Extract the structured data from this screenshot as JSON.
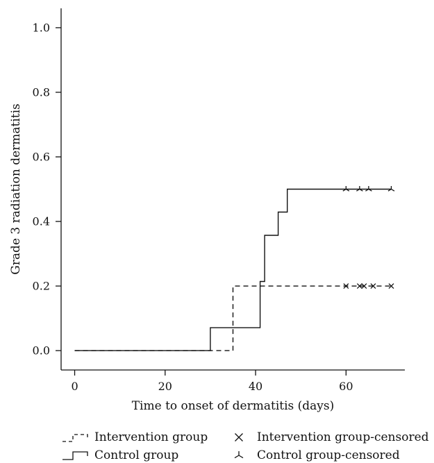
{
  "chart_data": {
    "type": "line",
    "title": "",
    "xlabel": "Time to onset of dermatitis (days)",
    "ylabel": "Grade 3 radiation dermatitis",
    "xlim": [
      -3,
      73
    ],
    "ylim": [
      -0.06,
      1.06
    ],
    "x_ticks": [
      0,
      20,
      40,
      60
    ],
    "x_tick_labels": [
      "0",
      "20",
      "40",
      "60"
    ],
    "y_ticks": [
      0.0,
      0.2,
      0.4,
      0.6,
      0.8,
      1.0
    ],
    "y_tick_labels": [
      "0.0",
      "0.2",
      "0.4",
      "0.6",
      "0.8",
      "1.0"
    ],
    "grid": false,
    "legend_position": "bottom",
    "series": [
      {
        "name": "Intervention group",
        "style": "dashed",
        "color": "#111111",
        "steps": [
          [
            0,
            0.0
          ],
          [
            35,
            0.2
          ],
          [
            70,
            0.2
          ]
        ],
        "censored_label": "Intervention group-censored",
        "censored_marker": "x",
        "censored_x": [
          60,
          63,
          64,
          66,
          70
        ]
      },
      {
        "name": "Control group",
        "style": "solid",
        "color": "#111111",
        "steps": [
          [
            0,
            0.0
          ],
          [
            30,
            0.071
          ],
          [
            41,
            0.214
          ],
          [
            42,
            0.357
          ],
          [
            45,
            0.429
          ],
          [
            47,
            0.5
          ],
          [
            70,
            0.5
          ]
        ],
        "censored_label": "Control group-censored",
        "censored_marker": "tri",
        "censored_x": [
          60,
          63,
          65,
          70
        ]
      }
    ]
  }
}
